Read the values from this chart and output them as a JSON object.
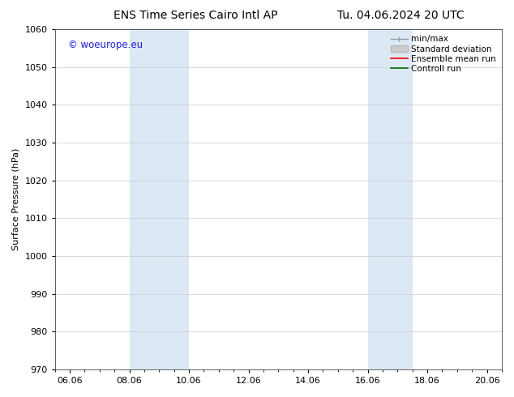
{
  "title_left": "ENS Time Series Cairo Intl AP",
  "title_right": "Tu. 04.06.2024 20 UTC",
  "ylabel": "Surface Pressure (hPa)",
  "ylim": [
    970,
    1060
  ],
  "yticks": [
    970,
    980,
    990,
    1000,
    1010,
    1020,
    1030,
    1040,
    1050,
    1060
  ],
  "xtick_labels": [
    "06.06",
    "08.06",
    "10.06",
    "12.06",
    "14.06",
    "16.06",
    "18.06",
    "20.06"
  ],
  "xtick_positions": [
    0,
    2,
    4,
    6,
    8,
    10,
    12,
    14
  ],
  "xlim": [
    -0.5,
    14.5
  ],
  "shaded_bands": [
    {
      "x_start": 2,
      "x_end": 4
    },
    {
      "x_start": 10,
      "x_end": 11.5
    }
  ],
  "shade_color": "#dce9f5",
  "watermark_text": "© woeurope.eu",
  "watermark_color": "#1a1aff",
  "bg_color": "#ffffff",
  "plot_bg_color": "#ffffff",
  "grid_color": "#cccccc",
  "title_fontsize": 10,
  "label_fontsize": 8,
  "tick_fontsize": 8,
  "legend_fontsize": 7.5
}
